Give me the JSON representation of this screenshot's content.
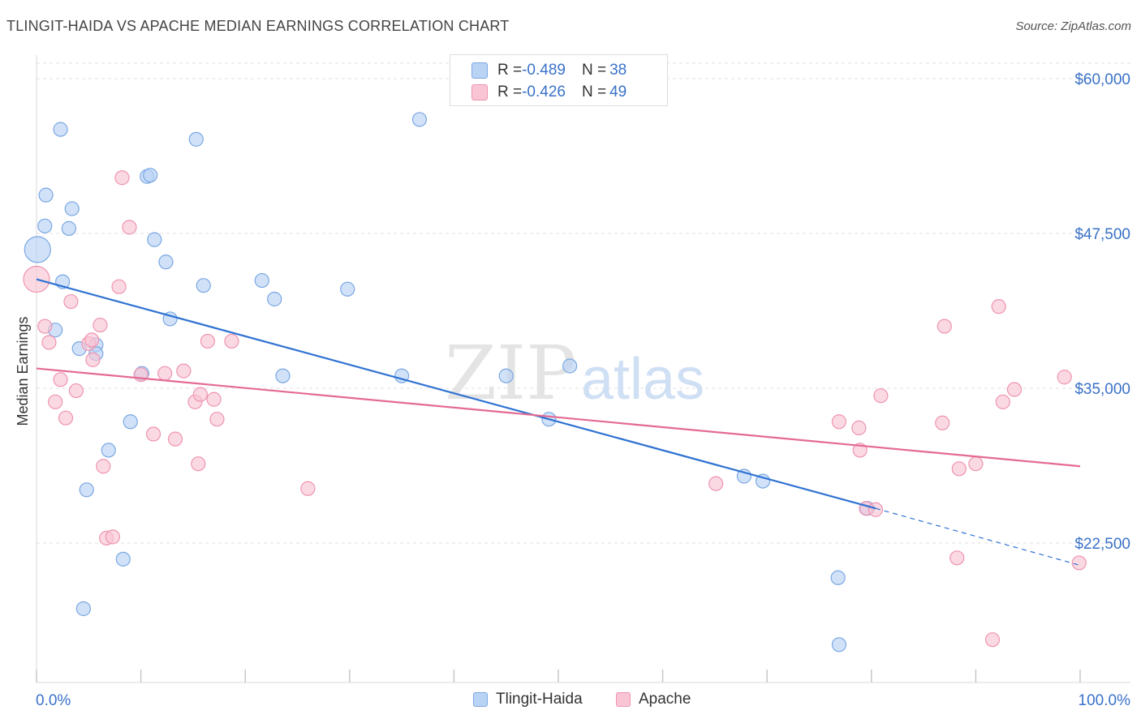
{
  "title": "TLINGIT-HAIDA VS APACHE MEDIAN EARNINGS CORRELATION CHART",
  "source": "Source: ZipAtlas.com",
  "watermark": {
    "zip": "ZIP",
    "atlas": "atlas"
  },
  "legend_top": [
    {
      "r_label": "R = ",
      "r_value": "-0.489",
      "n_label": "N = ",
      "n_value": "38"
    },
    {
      "r_label": "R = ",
      "r_value": "-0.426",
      "n_label": "N = ",
      "n_value": "49"
    }
  ],
  "legend_bottom": [
    {
      "label": "Tlingit-Haida"
    },
    {
      "label": "Apache"
    }
  ],
  "colors": {
    "tlingit_fill": "#b9d3f4",
    "tlingit_stroke": "#7aa7e3",
    "tlingit_line": "#2f72d2",
    "apache_fill": "#f9c5d4",
    "apache_stroke": "#ee94b0",
    "apache_line": "#e46a93",
    "axis_label": "#3a72c8",
    "grid": "#e2e2e2"
  },
  "chart_data": {
    "type": "scatter",
    "ylabel": "Median Earnings",
    "xlabel": "",
    "x_tick_labels": [
      "0.0%",
      "100.0%"
    ],
    "y_tick_labels": [
      "$60,000",
      "$47,500",
      "$35,000",
      "$22,500"
    ],
    "y_ticks": [
      60000,
      47500,
      35000,
      22500
    ],
    "xlim": [
      0,
      100
    ],
    "ylim": [
      12500,
      62000
    ],
    "grid": true,
    "series": [
      {
        "name": "Tlingit-Haida",
        "points": [
          [
            0.1,
            46200
          ],
          [
            0.9,
            50600
          ],
          [
            0.8,
            48100
          ],
          [
            2.3,
            55900
          ],
          [
            3.4,
            49500
          ],
          [
            3.1,
            47900
          ],
          [
            2.5,
            43600
          ],
          [
            1.8,
            39700
          ],
          [
            4.1,
            38200
          ],
          [
            5.7,
            38500
          ],
          [
            5.7,
            37800
          ],
          [
            10.6,
            52100
          ],
          [
            10.9,
            52200
          ],
          [
            15.3,
            55100
          ],
          [
            11.3,
            47000
          ],
          [
            12.4,
            45200
          ],
          [
            16.0,
            43300
          ],
          [
            21.6,
            43700
          ],
          [
            22.8,
            42200
          ],
          [
            12.8,
            40600
          ],
          [
            29.8,
            43000
          ],
          [
            10.1,
            36200
          ],
          [
            23.6,
            36000
          ],
          [
            35.0,
            36000
          ],
          [
            45.0,
            36000
          ],
          [
            51.1,
            36800
          ],
          [
            36.7,
            56700
          ],
          [
            9.0,
            32300
          ],
          [
            6.9,
            30000
          ],
          [
            4.8,
            26800
          ],
          [
            8.3,
            21200
          ],
          [
            4.5,
            17200
          ],
          [
            49.1,
            32500
          ],
          [
            67.8,
            27900
          ],
          [
            69.6,
            27500
          ],
          [
            76.8,
            19700
          ],
          [
            76.9,
            14300
          ],
          [
            79.6,
            25300
          ]
        ]
      },
      {
        "name": "Apache",
        "points": [
          [
            0.0,
            43800
          ],
          [
            0.8,
            40000
          ],
          [
            1.2,
            38700
          ],
          [
            2.3,
            35700
          ],
          [
            1.8,
            33900
          ],
          [
            2.8,
            32600
          ],
          [
            3.3,
            42000
          ],
          [
            3.8,
            34800
          ],
          [
            6.1,
            40100
          ],
          [
            5.0,
            38600
          ],
          [
            5.3,
            38900
          ],
          [
            5.4,
            37300
          ],
          [
            6.4,
            28700
          ],
          [
            6.7,
            22900
          ],
          [
            7.3,
            23000
          ],
          [
            7.9,
            43200
          ],
          [
            8.2,
            52000
          ],
          [
            8.9,
            48000
          ],
          [
            10.0,
            36100
          ],
          [
            11.2,
            31300
          ],
          [
            12.3,
            36200
          ],
          [
            13.3,
            30900
          ],
          [
            14.1,
            36400
          ],
          [
            15.2,
            33900
          ],
          [
            15.5,
            28900
          ],
          [
            15.7,
            34500
          ],
          [
            16.4,
            38800
          ],
          [
            17.0,
            34100
          ],
          [
            17.3,
            32500
          ],
          [
            18.7,
            38800
          ],
          [
            26.0,
            26900
          ],
          [
            65.1,
            27300
          ],
          [
            76.9,
            32300
          ],
          [
            78.8,
            31800
          ],
          [
            78.9,
            30000
          ],
          [
            79.5,
            25300
          ],
          [
            80.4,
            25200
          ],
          [
            80.9,
            34400
          ],
          [
            87.0,
            40000
          ],
          [
            86.8,
            32200
          ],
          [
            88.2,
            21300
          ],
          [
            88.4,
            28500
          ],
          [
            90.0,
            28900
          ],
          [
            91.6,
            14700
          ],
          [
            92.2,
            41600
          ],
          [
            92.6,
            33900
          ],
          [
            93.7,
            34900
          ],
          [
            98.5,
            35900
          ],
          [
            99.9,
            20900
          ]
        ]
      }
    ],
    "trend_lines": [
      {
        "series": "Tlingit-Haida",
        "from": [
          0,
          43800
        ],
        "to": [
          80.4,
          25300
        ],
        "dashed_to": [
          100,
          20700
        ]
      },
      {
        "series": "Apache",
        "from": [
          0,
          36600
        ],
        "to": [
          100,
          28700
        ]
      }
    ]
  }
}
